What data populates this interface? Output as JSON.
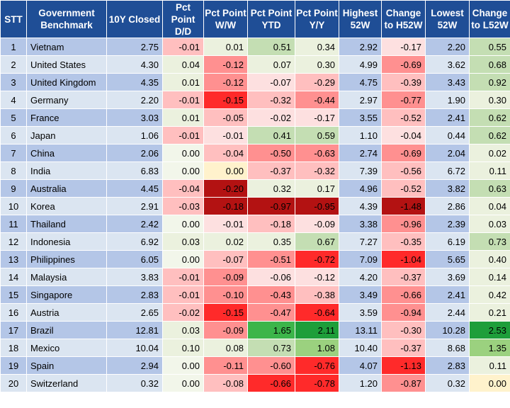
{
  "table": {
    "headers": [
      {
        "key": "stt",
        "label": "STT"
      },
      {
        "key": "benchmark",
        "label": "Government Benchmark"
      },
      {
        "key": "closed",
        "label": "10Y Closed"
      },
      {
        "key": "dd",
        "label": "Pct Point D/D"
      },
      {
        "key": "ww",
        "label": "Pct Point W/W"
      },
      {
        "key": "ytd",
        "label": "Pct Point YTD"
      },
      {
        "key": "yy",
        "label": "Pct Point Y/Y"
      },
      {
        "key": "h52",
        "label": "Highest 52W"
      },
      {
        "key": "chg_h52",
        "label": "Change to H52W"
      },
      {
        "key": "l52",
        "label": "Lowest 52W"
      },
      {
        "key": "chg_l52",
        "label": "Change to L52W"
      }
    ],
    "rows": [
      {
        "stt": "1",
        "benchmark": "Vietnam",
        "closed": "2.75",
        "dd": "-0.01",
        "ww": "0.01",
        "ytd": "0.51",
        "yy": "0.34",
        "h52": "2.92",
        "chg_h52": "-0.17",
        "l52": "2.20",
        "chg_l52": "0.55"
      },
      {
        "stt": "2",
        "benchmark": "United States",
        "closed": "4.30",
        "dd": "0.04",
        "ww": "-0.12",
        "ytd": "0.07",
        "yy": "0.30",
        "h52": "4.99",
        "chg_h52": "-0.69",
        "l52": "3.62",
        "chg_l52": "0.68"
      },
      {
        "stt": "3",
        "benchmark": "United Kingdom",
        "closed": "4.35",
        "dd": "0.01",
        "ww": "-0.12",
        "ytd": "-0.07",
        "yy": "-0.29",
        "h52": "4.75",
        "chg_h52": "-0.39",
        "l52": "3.43",
        "chg_l52": "0.92"
      },
      {
        "stt": "4",
        "benchmark": "Germany",
        "closed": "2.20",
        "dd": "-0.01",
        "ww": "-0.15",
        "ytd": "-0.32",
        "yy": "-0.44",
        "h52": "2.97",
        "chg_h52": "-0.77",
        "l52": "1.90",
        "chg_l52": "0.30"
      },
      {
        "stt": "5",
        "benchmark": "France",
        "closed": "3.03",
        "dd": "0.01",
        "ww": "-0.05",
        "ytd": "-0.02",
        "yy": "-0.17",
        "h52": "3.55",
        "chg_h52": "-0.52",
        "l52": "2.41",
        "chg_l52": "0.62"
      },
      {
        "stt": "6",
        "benchmark": "Japan",
        "closed": "1.06",
        "dd": "-0.01",
        "ww": "-0.01",
        "ytd": "0.41",
        "yy": "0.59",
        "h52": "1.10",
        "chg_h52": "-0.04",
        "l52": "0.44",
        "chg_l52": "0.62"
      },
      {
        "stt": "7",
        "benchmark": "China",
        "closed": "2.06",
        "dd": "0.00",
        "ww": "-0.04",
        "ytd": "-0.50",
        "yy": "-0.63",
        "h52": "2.74",
        "chg_h52": "-0.69",
        "l52": "2.04",
        "chg_l52": "0.02"
      },
      {
        "stt": "8",
        "benchmark": "India",
        "closed": "6.83",
        "dd": "0.00",
        "ww": "0.00",
        "ytd": "-0.37",
        "yy": "-0.32",
        "h52": "7.39",
        "chg_h52": "-0.56",
        "l52": "6.72",
        "chg_l52": "0.11"
      },
      {
        "stt": "9",
        "benchmark": "Australia",
        "closed": "4.45",
        "dd": "-0.04",
        "ww": "-0.20",
        "ytd": "0.32",
        "yy": "0.17",
        "h52": "4.96",
        "chg_h52": "-0.52",
        "l52": "3.82",
        "chg_l52": "0.63"
      },
      {
        "stt": "10",
        "benchmark": "Korea",
        "closed": "2.91",
        "dd": "-0.03",
        "ww": "-0.18",
        "ytd": "-0.97",
        "yy": "-0.95",
        "h52": "4.39",
        "chg_h52": "-1.48",
        "l52": "2.86",
        "chg_l52": "0.04"
      },
      {
        "stt": "11",
        "benchmark": "Thailand",
        "closed": "2.42",
        "dd": "0.00",
        "ww": "-0.01",
        "ytd": "-0.18",
        "yy": "-0.09",
        "h52": "3.38",
        "chg_h52": "-0.96",
        "l52": "2.39",
        "chg_l52": "0.03"
      },
      {
        "stt": "12",
        "benchmark": "Indonesia",
        "closed": "6.92",
        "dd": "0.03",
        "ww": "0.02",
        "ytd": "0.35",
        "yy": "0.67",
        "h52": "7.27",
        "chg_h52": "-0.35",
        "l52": "6.19",
        "chg_l52": "0.73"
      },
      {
        "stt": "13",
        "benchmark": "Philippines",
        "closed": "6.05",
        "dd": "0.00",
        "ww": "-0.07",
        "ytd": "-0.51",
        "yy": "-0.72",
        "h52": "7.09",
        "chg_h52": "-1.04",
        "l52": "5.65",
        "chg_l52": "0.40"
      },
      {
        "stt": "14",
        "benchmark": "Malaysia",
        "closed": "3.83",
        "dd": "-0.01",
        "ww": "-0.09",
        "ytd": "-0.06",
        "yy": "-0.12",
        "h52": "4.20",
        "chg_h52": "-0.37",
        "l52": "3.69",
        "chg_l52": "0.14"
      },
      {
        "stt": "15",
        "benchmark": "Singapore",
        "closed": "2.83",
        "dd": "-0.01",
        "ww": "-0.10",
        "ytd": "-0.43",
        "yy": "-0.38",
        "h52": "3.49",
        "chg_h52": "-0.66",
        "l52": "2.41",
        "chg_l52": "0.42"
      },
      {
        "stt": "16",
        "benchmark": "Austria",
        "closed": "2.65",
        "dd": "-0.02",
        "ww": "-0.15",
        "ytd": "-0.47",
        "yy": "-0.64",
        "h52": "3.59",
        "chg_h52": "-0.94",
        "l52": "2.44",
        "chg_l52": "0.21"
      },
      {
        "stt": "17",
        "benchmark": "Brazil",
        "closed": "12.81",
        "dd": "0.03",
        "ww": "-0.09",
        "ytd": "1.65",
        "yy": "2.11",
        "h52": "13.11",
        "chg_h52": "-0.30",
        "l52": "10.28",
        "chg_l52": "2.53"
      },
      {
        "stt": "18",
        "benchmark": "Mexico",
        "closed": "10.04",
        "dd": "0.10",
        "ww": "0.08",
        "ytd": "0.73",
        "yy": "1.08",
        "h52": "10.40",
        "chg_h52": "-0.37",
        "l52": "8.68",
        "chg_l52": "1.35"
      },
      {
        "stt": "19",
        "benchmark": "Spain",
        "closed": "2.94",
        "dd": "0.00",
        "ww": "-0.11",
        "ytd": "-0.60",
        "yy": "-0.76",
        "h52": "4.07",
        "chg_h52": "-1.13",
        "l52": "2.83",
        "chg_l52": "0.11"
      },
      {
        "stt": "20",
        "benchmark": "Switzerland",
        "closed": "0.32",
        "dd": "0.00",
        "ww": "-0.08",
        "ytd": "-0.66",
        "yy": "-0.78",
        "h52": "1.20",
        "chg_h52": "-0.87",
        "l52": "0.32",
        "chg_l52": "0.00"
      }
    ]
  },
  "colors": {
    "header_bg": "#1f4e96",
    "header_text": "#ffffff",
    "row_band_odd": "#b4c6e7",
    "row_band_even": "#dbe5f1",
    "zero_yellow": "#fff2cc",
    "positive_scale": [
      "#ebf1de",
      "#c4deb3",
      "#9bd17f",
      "#3cb54a",
      "#1e9e3a"
    ],
    "negative_scale": [
      "#fde0e0",
      "#ffbfbf",
      "#ff9090",
      "#ff2a2a",
      "#b31212"
    ]
  }
}
